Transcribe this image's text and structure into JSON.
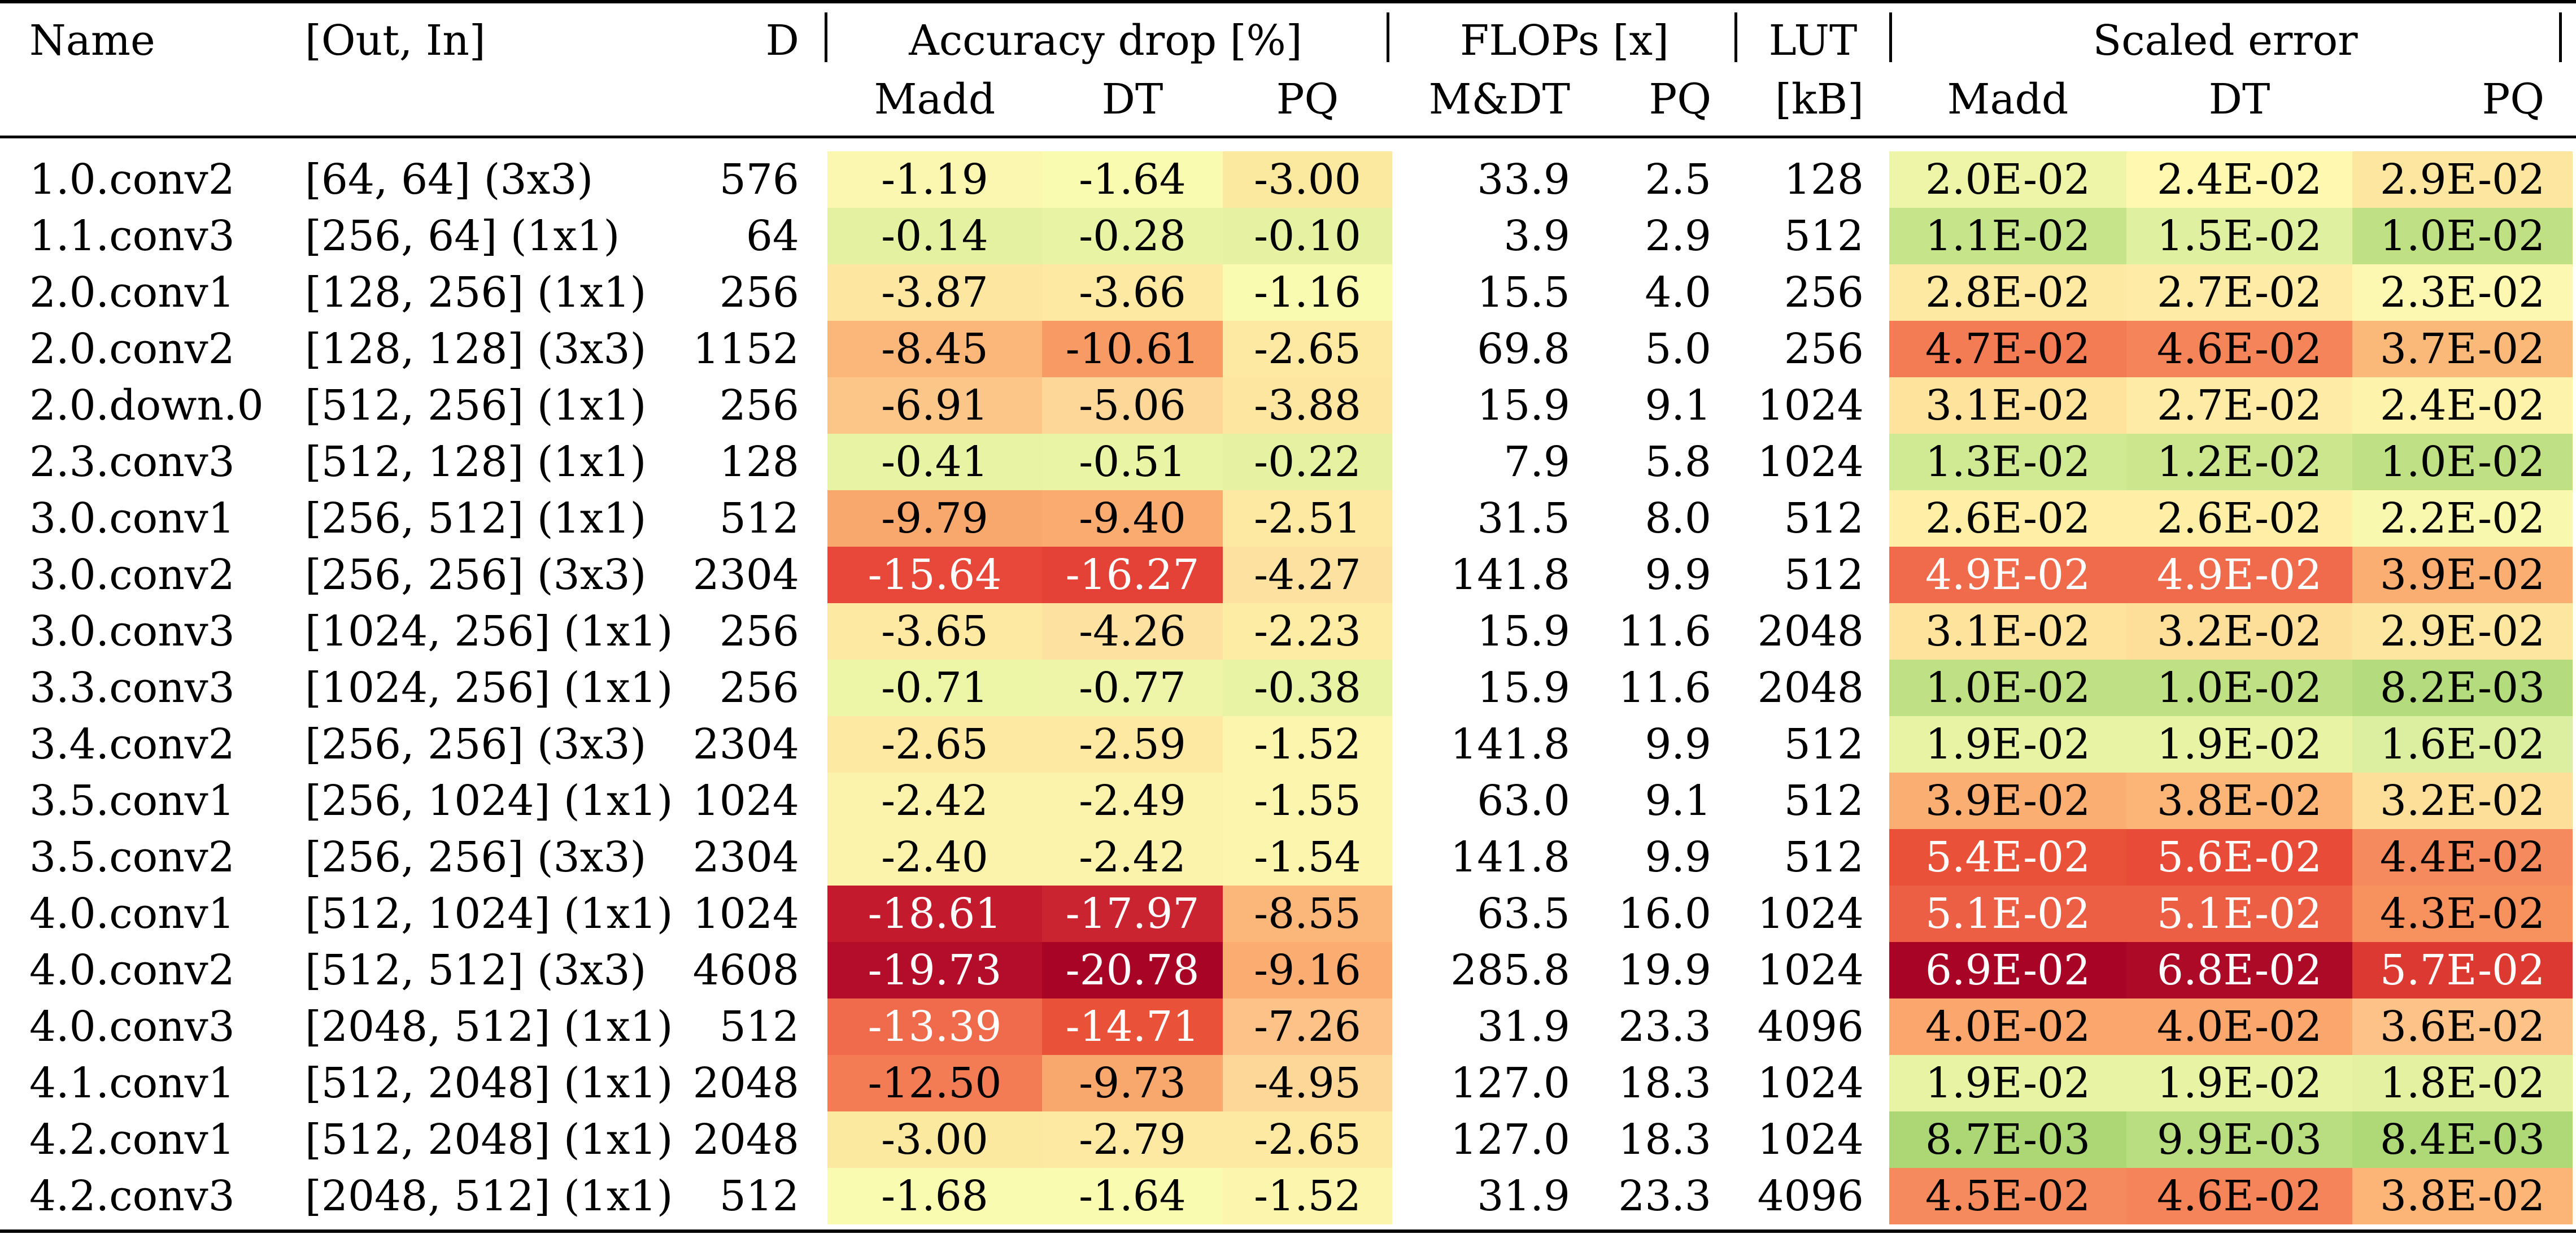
{
  "table": {
    "headers": {
      "name": "Name",
      "outin": "[Out, In]",
      "d": "D",
      "acc_group": "Accuracy drop [%]",
      "flops_group": "FLOPs [x]",
      "lut_top": "LUT",
      "lut_bottom": "[kB]",
      "err_group": "Scaled error",
      "madd": "Madd",
      "dt": "DT",
      "pq": "PQ",
      "mdt": "M&DT",
      "flops_pq": "PQ",
      "err_madd": "Madd",
      "err_dt": "DT",
      "err_pq": "PQ"
    },
    "rows": [
      {
        "name": "1.0.conv2",
        "outin": "[64, 64] (3x3)",
        "d": "576",
        "acc": [
          "-1.19",
          "-1.64",
          "-3.00"
        ],
        "flops_mdt": "33.9",
        "flops_pq": "2.5",
        "lut": "128",
        "err": [
          "2.0E-02",
          "2.4E-02",
          "2.9E-02"
        ],
        "acc_colors": [
          "#fbf7b0",
          "#f8fbb0",
          "#fce9a0"
        ],
        "err_colors": [
          "#eef5a8",
          "#fef8b0",
          "#fde7a0"
        ]
      },
      {
        "name": "1.1.conv3",
        "outin": "[256, 64] (1x1)",
        "d": "64",
        "acc": [
          "-0.14",
          "-0.28",
          "-0.10"
        ],
        "flops_mdt": "3.9",
        "flops_pq": "2.9",
        "lut": "512",
        "err": [
          "1.1E-02",
          "1.5E-02",
          "1.0E-02"
        ],
        "acc_colors": [
          "#e4f1a1",
          "#e8f3a3",
          "#e6f2a2"
        ],
        "err_colors": [
          "#c6e48a",
          "#dff0a0",
          "#bfe184"
        ]
      },
      {
        "name": "2.0.conv1",
        "outin": "[128, 256] (1x1)",
        "d": "256",
        "acc": [
          "-3.87",
          "-3.66",
          "-1.16"
        ],
        "flops_mdt": "15.5",
        "flops_pq": "4.0",
        "lut": "256",
        "err": [
          "2.8E-02",
          "2.7E-02",
          "2.3E-02"
        ],
        "acc_colors": [
          "#fde6a0",
          "#fde9a2",
          "#f8fbb0"
        ],
        "err_colors": [
          "#fee9a3",
          "#feeba5",
          "#fcf8b1"
        ]
      },
      {
        "name": "2.0.conv2",
        "outin": "[128, 128] (3x3)",
        "d": "1152",
        "acc": [
          "-8.45",
          "-10.61",
          "-2.65"
        ],
        "flops_mdt": "69.8",
        "flops_pq": "5.0",
        "lut": "256",
        "err": [
          "4.7E-02",
          "4.6E-02",
          "3.7E-02"
        ],
        "acc_colors": [
          "#fbb77a",
          "#f89a64",
          "#fde9a2"
        ],
        "err_colors": [
          "#f47c55",
          "#f68459",
          "#fbb979"
        ]
      },
      {
        "name": "2.0.down.0",
        "outin": "[512, 256] (1x1)",
        "d": "256",
        "acc": [
          "-6.91",
          "-5.06",
          "-3.88"
        ],
        "flops_mdt": "15.9",
        "flops_pq": "9.1",
        "lut": "1024",
        "err": [
          "3.1E-02",
          "2.7E-02",
          "2.4E-02"
        ],
        "acc_colors": [
          "#fcc688",
          "#fdd797",
          "#fde6a0"
        ],
        "err_colors": [
          "#fde39c",
          "#feeba5",
          "#fef3ab"
        ]
      },
      {
        "name": "2.3.conv3",
        "outin": "[512, 128] (1x1)",
        "d": "128",
        "acc": [
          "-0.41",
          "-0.51",
          "-0.22"
        ],
        "flops_mdt": "7.9",
        "flops_pq": "5.8",
        "lut": "1024",
        "err": [
          "1.3E-02",
          "1.2E-02",
          "1.0E-02"
        ],
        "acc_colors": [
          "#e8f3a3",
          "#eaf4a5",
          "#e6f2a2"
        ],
        "err_colors": [
          "#d0e993",
          "#cbe68d",
          "#bfe184"
        ]
      },
      {
        "name": "3.0.conv1",
        "outin": "[256, 512] (1x1)",
        "d": "512",
        "acc": [
          "-9.79",
          "-9.40",
          "-2.51"
        ],
        "flops_mdt": "31.5",
        "flops_pq": "8.0",
        "lut": "512",
        "err": [
          "2.6E-02",
          "2.6E-02",
          "2.2E-02"
        ],
        "acc_colors": [
          "#f9a86d",
          "#faab70",
          "#fde9a2"
        ],
        "err_colors": [
          "#feefa7",
          "#feefa7",
          "#f9f8af"
        ]
      },
      {
        "name": "3.0.conv2",
        "outin": "[256, 256] (3x3)",
        "d": "2304",
        "acc": [
          "-15.64",
          "-16.27",
          "-4.27"
        ],
        "flops_mdt": "141.8",
        "flops_pq": "9.9",
        "lut": "512",
        "err": [
          "4.9E-02",
          "4.9E-02",
          "3.9E-02"
        ],
        "acc_colors": [
          "#e8483a",
          "#e54237",
          "#fde1a0"
        ],
        "err_colors": [
          "#f06b4c",
          "#f06b4c",
          "#fbae72"
        ]
      },
      {
        "name": "3.0.conv3",
        "outin": "[1024, 256] (1x1)",
        "d": "256",
        "acc": [
          "-3.65",
          "-4.26",
          "-2.23"
        ],
        "flops_mdt": "15.9",
        "flops_pq": "11.6",
        "lut": "2048",
        "err": [
          "3.1E-02",
          "3.2E-02",
          "2.9E-02"
        ],
        "acc_colors": [
          "#fde9a2",
          "#fde1a0",
          "#fdeca4"
        ],
        "err_colors": [
          "#fde39c",
          "#fddf99",
          "#fde7a0"
        ]
      },
      {
        "name": "3.3.conv3",
        "outin": "[1024, 256] (1x1)",
        "d": "256",
        "acc": [
          "-0.71",
          "-0.77",
          "-0.38"
        ],
        "flops_mdt": "15.9",
        "flops_pq": "11.6",
        "lut": "2048",
        "err": [
          "1.0E-02",
          "1.0E-02",
          "8.2E-03"
        ],
        "acc_colors": [
          "#edf5a7",
          "#eef5a8",
          "#e8f3a3"
        ],
        "err_colors": [
          "#bfe184",
          "#bfe184",
          "#b4dc7c"
        ]
      },
      {
        "name": "3.4.conv2",
        "outin": "[256, 256] (3x3)",
        "d": "2304",
        "acc": [
          "-2.65",
          "-2.59",
          "-1.52"
        ],
        "flops_mdt": "141.8",
        "flops_pq": "9.9",
        "lut": "512",
        "err": [
          "1.9E-02",
          "1.9E-02",
          "1.6E-02"
        ],
        "acc_colors": [
          "#fde9a2",
          "#fde9a2",
          "#fbf5ae"
        ],
        "err_colors": [
          "#e8f3a3",
          "#e8f3a3",
          "#dcefa0"
        ]
      },
      {
        "name": "3.5.conv1",
        "outin": "[256, 1024] (1x1)",
        "d": "1024",
        "acc": [
          "-2.42",
          "-2.49",
          "-1.55"
        ],
        "flops_mdt": "63.0",
        "flops_pq": "9.1",
        "lut": "512",
        "err": [
          "3.9E-02",
          "3.8E-02",
          "3.2E-02"
        ],
        "acc_colors": [
          "#fbf3ab",
          "#fbf3ab",
          "#fbf5ae"
        ],
        "err_colors": [
          "#fbae72",
          "#fbb577",
          "#fddf99"
        ]
      },
      {
        "name": "3.5.conv2",
        "outin": "[256, 256] (3x3)",
        "d": "2304",
        "acc": [
          "-2.40",
          "-2.42",
          "-1.54"
        ],
        "flops_mdt": "141.8",
        "flops_pq": "9.9",
        "lut": "512",
        "err": [
          "5.4E-02",
          "5.6E-02",
          "4.4E-02"
        ],
        "acc_colors": [
          "#fbf3ab",
          "#fbf3ab",
          "#fbf5ae"
        ],
        "err_colors": [
          "#ea5139",
          "#e84b37",
          "#f58b5c"
        ]
      },
      {
        "name": "4.0.conv1",
        "outin": "[512, 1024] (1x1)",
        "d": "1024",
        "acc": [
          "-18.61",
          "-17.97",
          "-8.55"
        ],
        "flops_mdt": "63.5",
        "flops_pq": "16.0",
        "lut": "1024",
        "err": [
          "5.1E-02",
          "5.1E-02",
          "4.3E-02"
        ],
        "acc_colors": [
          "#c31b2d",
          "#cb2431",
          "#fbb77a"
        ],
        "err_colors": [
          "#ed5f44",
          "#ed5f44",
          "#f7915e"
        ]
      },
      {
        "name": "4.0.conv2",
        "outin": "[512, 512] (3x3)",
        "d": "4608",
        "acc": [
          "-19.73",
          "-20.78",
          "-9.16"
        ],
        "flops_mdt": "285.8",
        "flops_pq": "19.9",
        "lut": "1024",
        "err": [
          "6.9E-02",
          "6.8E-02",
          "5.7E-02"
        ],
        "acc_colors": [
          "#b40d2a",
          "#a80526",
          "#fbac71"
        ],
        "err_colors": [
          "#a80526",
          "#ad0a28",
          "#dc3a30"
        ]
      },
      {
        "name": "4.0.conv3",
        "outin": "[2048, 512] (1x1)",
        "d": "512",
        "acc": [
          "-13.39",
          "-14.71",
          "-7.26"
        ],
        "flops_mdt": "31.9",
        "flops_pq": "23.3",
        "lut": "4096",
        "err": [
          "4.0E-02",
          "4.0E-02",
          "3.6E-02"
        ],
        "acc_colors": [
          "#f06b4c",
          "#ea5139",
          "#fcc287"
        ],
        "err_colors": [
          "#faa66c",
          "#faa66c",
          "#fcc287"
        ]
      },
      {
        "name": "4.1.conv1",
        "outin": "[512, 2048] (1x1)",
        "d": "2048",
        "acc": [
          "-12.50",
          "-9.73",
          "-4.95"
        ],
        "flops_mdt": "127.0",
        "flops_pq": "18.3",
        "lut": "1024",
        "err": [
          "1.9E-02",
          "1.9E-02",
          "1.8E-02"
        ],
        "acc_colors": [
          "#f47c55",
          "#f9a86d",
          "#fdd797"
        ],
        "err_colors": [
          "#e8f3a3",
          "#e8f3a3",
          "#e4f1a1"
        ]
      },
      {
        "name": "4.2.conv1",
        "outin": "[512, 2048] (1x1)",
        "d": "2048",
        "acc": [
          "-3.00",
          "-2.79",
          "-2.65"
        ],
        "flops_mdt": "127.0",
        "flops_pq": "18.3",
        "lut": "1024",
        "err": [
          "8.7E-03",
          "9.9E-03",
          "8.4E-03"
        ],
        "acc_colors": [
          "#fce9a0",
          "#fde9a2",
          "#fde9a2"
        ],
        "err_colors": [
          "#acd775",
          "#b8de80",
          "#aed977"
        ]
      },
      {
        "name": "4.2.conv3",
        "outin": "[2048, 512] (1x1)",
        "d": "512",
        "acc": [
          "-1.68",
          "-1.64",
          "-1.52"
        ],
        "flops_mdt": "31.9",
        "flops_pq": "23.3",
        "lut": "4096",
        "err": [
          "4.5E-02",
          "4.6E-02",
          "3.8E-02"
        ],
        "acc_colors": [
          "#f8fbb0",
          "#f8fbb0",
          "#fbf5ae"
        ],
        "err_colors": [
          "#f58b5c",
          "#f68459",
          "#fbb577"
        ]
      }
    ]
  }
}
